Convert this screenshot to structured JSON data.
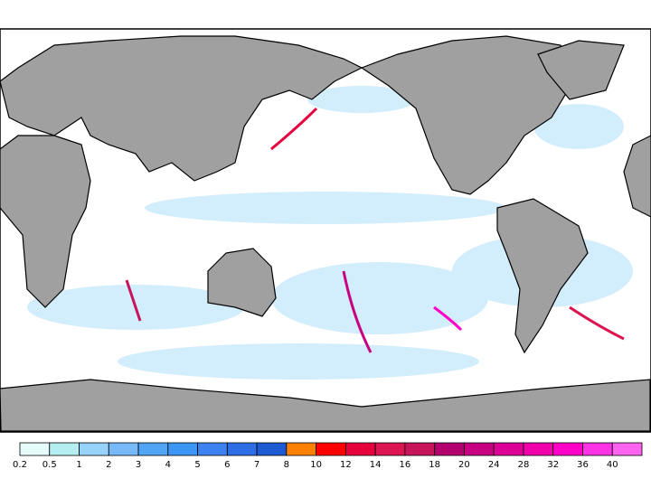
{
  "colorbar": {
    "labels": [
      0.2,
      0.5,
      1,
      2,
      3,
      4,
      5,
      6,
      7,
      8,
      10,
      12,
      14,
      16,
      18,
      20,
      24,
      28,
      32,
      36,
      40
    ],
    "colors": [
      "#e6fcfc",
      "#b4eef0",
      "#96d2fa",
      "#78b9fa",
      "#50a5f5",
      "#3c96f5",
      "#3c82f0",
      "#2d6ee6",
      "#1e5ad2",
      "#ff8000",
      "#ff0000",
      "#e6003c",
      "#dc1450",
      "#c8145a",
      "#b4006e",
      "#c80082",
      "#dc0096",
      "#f000aa",
      "#ff00c8",
      "#ff32e6",
      "#ff64f0"
    ]
  }
}
